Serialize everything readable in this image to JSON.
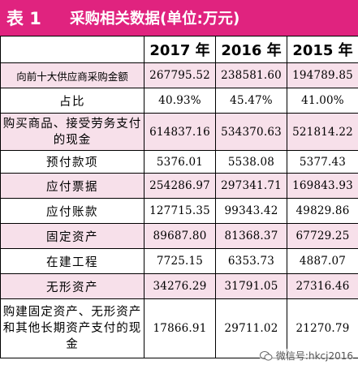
{
  "title": {
    "label": "表 1",
    "text": "采购相关数据(单位:万元)"
  },
  "columns": [
    "2017 年",
    "2016 年",
    "2015 年"
  ],
  "rows": [
    {
      "label": "向前十大供应商采购金额",
      "values": [
        "267795.52",
        "238581.60",
        "194789.85"
      ]
    },
    {
      "label": "占比",
      "values": [
        "40.93%",
        "45.47%",
        "41.00%"
      ]
    },
    {
      "label": "购买商品、接受劳务支付的现金",
      "values": [
        "614837.16",
        "534370.63",
        "521814.22"
      ]
    },
    {
      "label": "预付款项",
      "values": [
        "5376.01",
        "5538.08",
        "5377.43"
      ]
    },
    {
      "label": "应付票据",
      "values": [
        "254286.97",
        "297341.71",
        "169843.93"
      ]
    },
    {
      "label": "应付账款",
      "values": [
        "127715.35",
        "99343.42",
        "49829.86"
      ]
    },
    {
      "label": "固定资产",
      "values": [
        "89687.80",
        "81368.37",
        "67729.25"
      ]
    },
    {
      "label": "在建工程",
      "values": [
        "7725.15",
        "6353.73",
        "4887.07"
      ]
    },
    {
      "label": "无形资产",
      "values": [
        "34276.29",
        "31791.05",
        "27316.46"
      ]
    },
    {
      "label": "购建固定资产、无形资产和其他长期资产支付的现金",
      "values": [
        "17866.91",
        "29711.02",
        "21270.79"
      ]
    }
  ],
  "watermark": {
    "text": "微信号:hkcj2016",
    "icon": "wechat-icon"
  },
  "colors": {
    "title_bg": "#e0237f",
    "row_pink": "#f7e0ea"
  }
}
